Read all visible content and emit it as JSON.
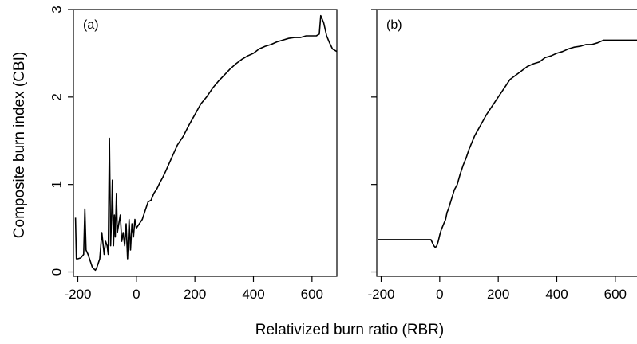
{
  "chart_data": [
    {
      "type": "line",
      "panel_label": "(a)",
      "ylabel": "Composite burn index (CBI)",
      "xlim": [
        -215,
        685
      ],
      "ylim": [
        -0.05,
        3.0
      ],
      "x_ticks": [
        -200,
        0,
        200,
        400,
        600
      ],
      "x_tick_labels": [
        "-200",
        "0",
        "200",
        "400",
        "600"
      ],
      "y_ticks": [
        0,
        1,
        2,
        3
      ],
      "y_tick_labels": [
        "0",
        "1",
        "2",
        "3"
      ],
      "grid": false,
      "series": [
        {
          "color": "#000000",
          "x": [
            -208,
            -205,
            -200,
            -190,
            -180,
            -176,
            -172,
            -165,
            -150,
            -140,
            -135,
            -125,
            -118,
            -110,
            -105,
            -100,
            -96,
            -92,
            -88,
            -85,
            -82,
            -78,
            -75,
            -72,
            -68,
            -65,
            -60,
            -55,
            -50,
            -45,
            -40,
            -35,
            -30,
            -25,
            -20,
            -15,
            -10,
            -5,
            0,
            10,
            20,
            30,
            40,
            50,
            60,
            70,
            80,
            90,
            100,
            120,
            140,
            160,
            180,
            200,
            220,
            240,
            260,
            280,
            300,
            320,
            340,
            360,
            380,
            400,
            420,
            440,
            460,
            480,
            500,
            520,
            540,
            560,
            580,
            600,
            615,
            625,
            630,
            640,
            650,
            660,
            670,
            685
          ],
          "y": [
            0.62,
            0.15,
            0.15,
            0.16,
            0.2,
            0.72,
            0.25,
            0.2,
            0.05,
            0.02,
            0.05,
            0.15,
            0.45,
            0.2,
            0.35,
            0.3,
            0.2,
            1.53,
            0.3,
            0.6,
            1.05,
            0.3,
            0.65,
            0.4,
            0.9,
            0.45,
            0.55,
            0.65,
            0.35,
            0.45,
            0.3,
            0.55,
            0.15,
            0.6,
            0.25,
            0.55,
            0.4,
            0.6,
            0.5,
            0.55,
            0.6,
            0.7,
            0.8,
            0.82,
            0.9,
            0.95,
            1.02,
            1.08,
            1.15,
            1.3,
            1.45,
            1.55,
            1.68,
            1.8,
            1.92,
            2.0,
            2.1,
            2.18,
            2.25,
            2.32,
            2.38,
            2.43,
            2.47,
            2.5,
            2.55,
            2.58,
            2.6,
            2.63,
            2.65,
            2.67,
            2.68,
            2.68,
            2.7,
            2.7,
            2.7,
            2.72,
            2.93,
            2.85,
            2.7,
            2.62,
            2.55,
            2.52
          ]
        }
      ]
    },
    {
      "type": "line",
      "panel_label": "(b)",
      "xlim": [
        -215,
        685
      ],
      "ylim": [
        -0.05,
        3.0
      ],
      "x_ticks": [
        -200,
        0,
        200,
        400,
        600
      ],
      "x_tick_labels": [
        "-200",
        "0",
        "200",
        "400",
        "600"
      ],
      "y_ticks": [
        0,
        1,
        2,
        3
      ],
      "grid": false,
      "series": [
        {
          "color": "#000000",
          "x": [
            -210,
            -100,
            -30,
            -20,
            -15,
            -10,
            -5,
            0,
            5,
            10,
            15,
            20,
            25,
            30,
            40,
            50,
            60,
            70,
            80,
            90,
            100,
            120,
            140,
            160,
            180,
            200,
            220,
            240,
            260,
            280,
            300,
            320,
            340,
            360,
            380,
            400,
            420,
            440,
            460,
            480,
            500,
            520,
            540,
            560,
            580,
            600,
            640,
            685
          ],
          "y": [
            0.37,
            0.37,
            0.37,
            0.3,
            0.28,
            0.3,
            0.35,
            0.42,
            0.48,
            0.52,
            0.56,
            0.6,
            0.68,
            0.72,
            0.83,
            0.94,
            1.0,
            1.12,
            1.22,
            1.3,
            1.4,
            1.56,
            1.68,
            1.8,
            1.9,
            2.0,
            2.1,
            2.2,
            2.25,
            2.3,
            2.35,
            2.38,
            2.4,
            2.45,
            2.47,
            2.5,
            2.52,
            2.55,
            2.57,
            2.58,
            2.6,
            2.6,
            2.62,
            2.65,
            2.65,
            2.65,
            2.65,
            2.65
          ]
        }
      ]
    }
  ],
  "shared_xlabel": "Relativized burn ratio (RBR)"
}
